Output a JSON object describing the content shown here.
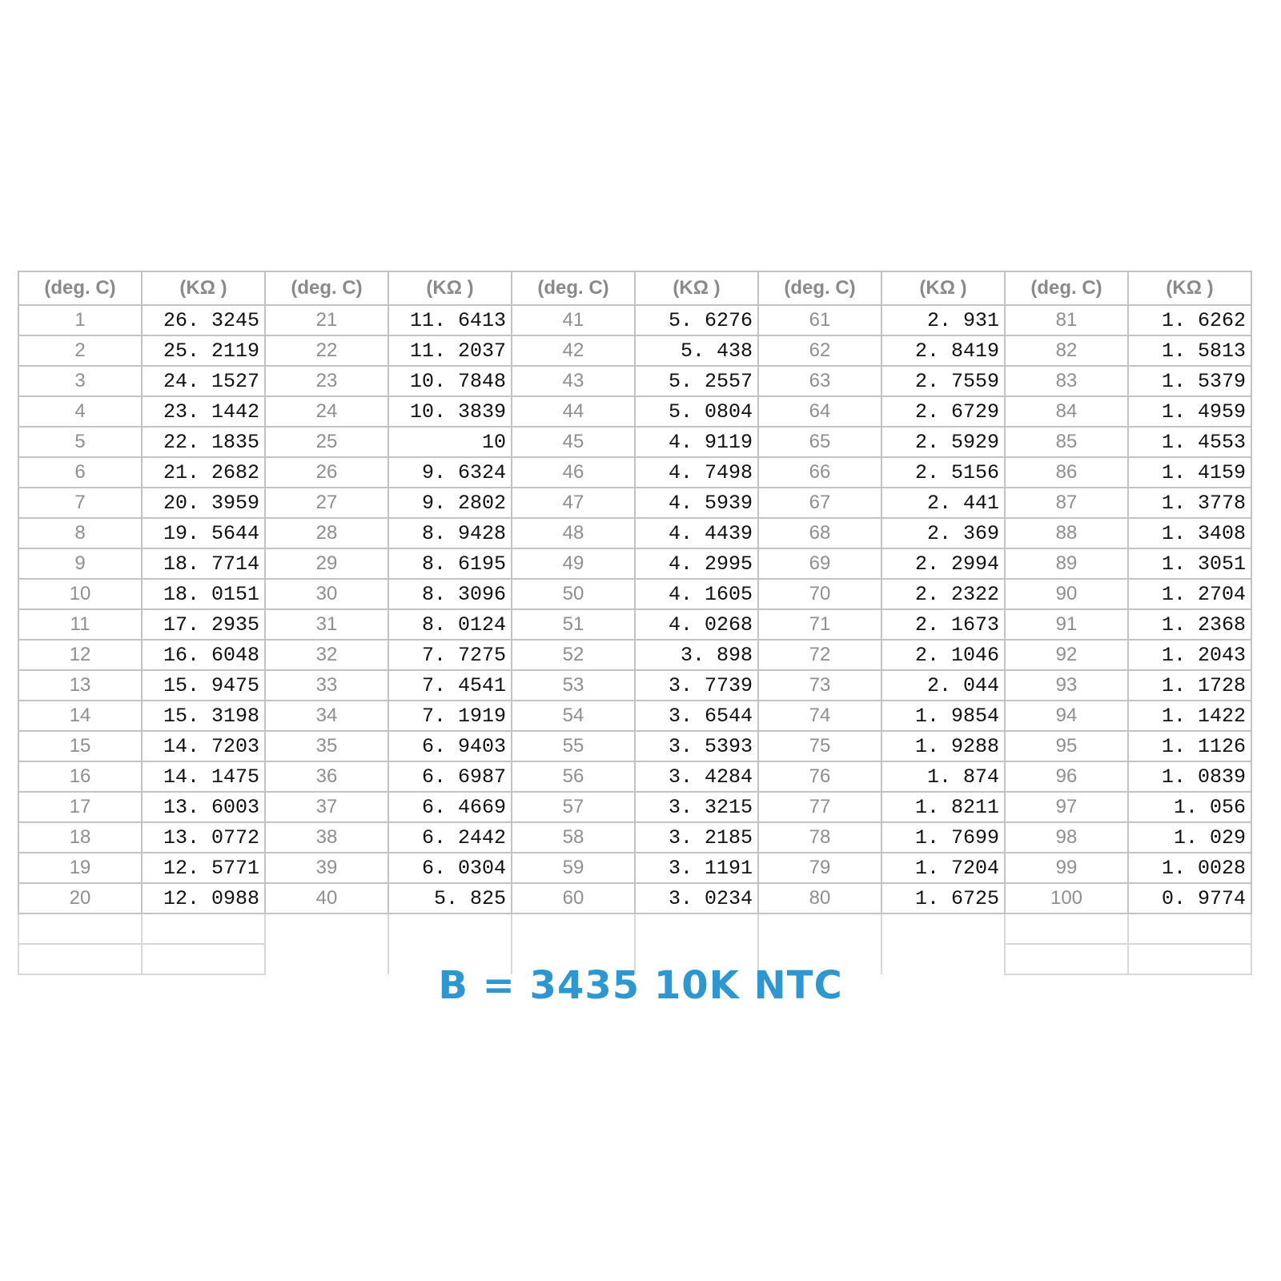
{
  "table": {
    "headers": [
      "(deg. C)",
      "(KΩ )",
      "(deg. C)",
      "(KΩ )",
      "(deg. C)",
      "(KΩ )",
      "(deg. C)",
      "(KΩ )",
      "(deg. C)",
      "(KΩ )"
    ],
    "rows": [
      [
        "1",
        "26. 3245",
        "21",
        "11. 6413",
        "41",
        "5. 6276",
        "61",
        "2. 931",
        "81",
        "1. 6262"
      ],
      [
        "2",
        "25. 2119",
        "22",
        "11. 2037",
        "42",
        "5. 438",
        "62",
        "2. 8419",
        "82",
        "1. 5813"
      ],
      [
        "3",
        "24. 1527",
        "23",
        "10. 7848",
        "43",
        "5. 2557",
        "63",
        "2. 7559",
        "83",
        "1. 5379"
      ],
      [
        "4",
        "23. 1442",
        "24",
        "10. 3839",
        "44",
        "5. 0804",
        "64",
        "2. 6729",
        "84",
        "1. 4959"
      ],
      [
        "5",
        "22. 1835",
        "25",
        "10",
        "45",
        "4. 9119",
        "65",
        "2. 5929",
        "85",
        "1. 4553"
      ],
      [
        "6",
        "21. 2682",
        "26",
        "9. 6324",
        "46",
        "4. 7498",
        "66",
        "2. 5156",
        "86",
        "1. 4159"
      ],
      [
        "7",
        "20. 3959",
        "27",
        "9. 2802",
        "47",
        "4. 5939",
        "67",
        "2. 441",
        "87",
        "1. 3778"
      ],
      [
        "8",
        "19. 5644",
        "28",
        "8. 9428",
        "48",
        "4. 4439",
        "68",
        "2. 369",
        "88",
        "1. 3408"
      ],
      [
        "9",
        "18. 7714",
        "29",
        "8. 6195",
        "49",
        "4. 2995",
        "69",
        "2. 2994",
        "89",
        "1. 3051"
      ],
      [
        "10",
        "18. 0151",
        "30",
        "8. 3096",
        "50",
        "4. 1605",
        "70",
        "2. 2322",
        "90",
        "1. 2704"
      ],
      [
        "11",
        "17. 2935",
        "31",
        "8. 0124",
        "51",
        "4. 0268",
        "71",
        "2. 1673",
        "91",
        "1. 2368"
      ],
      [
        "12",
        "16. 6048",
        "32",
        "7. 7275",
        "52",
        "3. 898",
        "72",
        "2. 1046",
        "92",
        "1. 2043"
      ],
      [
        "13",
        "15. 9475",
        "33",
        "7. 4541",
        "53",
        "3. 7739",
        "73",
        "2. 044",
        "93",
        "1. 1728"
      ],
      [
        "14",
        "15. 3198",
        "34",
        "7. 1919",
        "54",
        "3. 6544",
        "74",
        "1. 9854",
        "94",
        "1. 1422"
      ],
      [
        "15",
        "14. 7203",
        "35",
        "6. 9403",
        "55",
        "3. 5393",
        "75",
        "1. 9288",
        "95",
        "1. 1126"
      ],
      [
        "16",
        "14. 1475",
        "36",
        "6. 6987",
        "56",
        "3. 4284",
        "76",
        "1. 874",
        "96",
        "1. 0839"
      ],
      [
        "17",
        "13. 6003",
        "37",
        "6. 4669",
        "57",
        "3. 3215",
        "77",
        "1. 8211",
        "97",
        "1. 056"
      ],
      [
        "18",
        "13. 0772",
        "38",
        "6. 2442",
        "58",
        "3. 2185",
        "78",
        "1. 7699",
        "98",
        "1. 029"
      ],
      [
        "19",
        "12. 5771",
        "39",
        "6. 0304",
        "59",
        "3. 1191",
        "79",
        "1. 7204",
        "99",
        "1. 0028"
      ],
      [
        "20",
        "12. 0988",
        "40",
        "5. 825",
        "60",
        "3. 0234",
        "80",
        "1. 6725",
        "100",
        "0. 9774"
      ]
    ]
  },
  "caption": "B = 3435 10K NTC",
  "colors": {
    "caption": "#2f97cf",
    "grid": "#c3c3c3",
    "degree_text": "#8f8f8f"
  }
}
